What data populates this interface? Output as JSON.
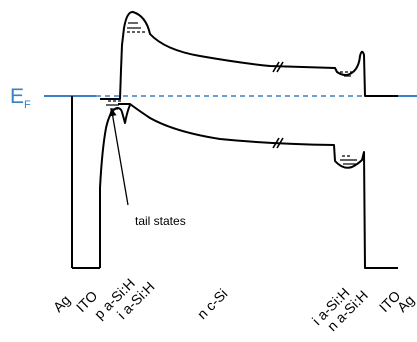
{
  "fermi_level": {
    "label_main": "E",
    "label_sub": "F",
    "color": "#3b7fc4"
  },
  "annotation": {
    "text": "tail states"
  },
  "layer_labels": [
    "Ag",
    "ITO",
    "p a-Si:H",
    "i a-Si:H",
    "n c-Si",
    "i a-Si:H",
    "n a-Si:H",
    "ITO",
    "Ag"
  ],
  "colors": {
    "band_line": "#000000",
    "fermi_line": "#3b7fc4"
  }
}
